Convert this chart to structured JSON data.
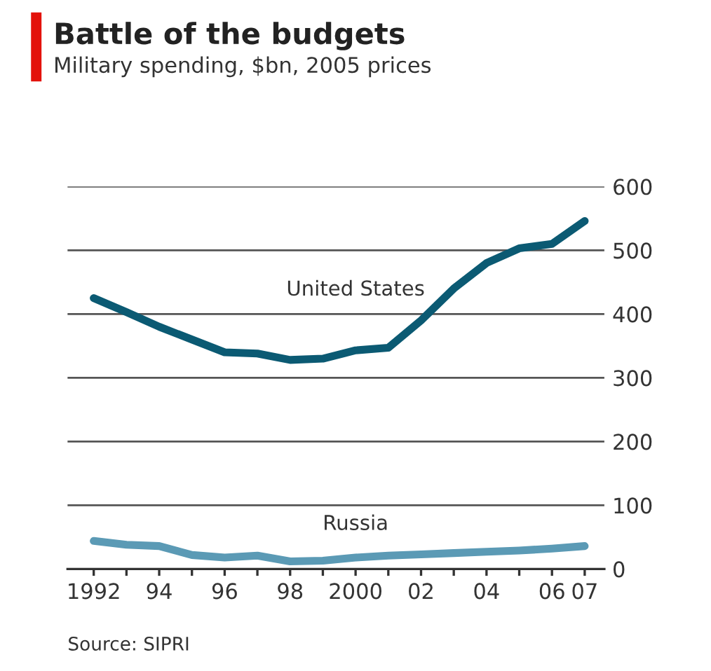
{
  "chart_data": {
    "type": "line",
    "title": "Battle of the budgets",
    "subtitle": "Military spending, $bn, 2005 prices",
    "x": [
      1992,
      1993,
      1994,
      1995,
      1996,
      1997,
      1998,
      1999,
      2000,
      2001,
      2002,
      2003,
      2004,
      2005,
      2006,
      2007
    ],
    "series": [
      {
        "name": "United States",
        "color": "#0b5a73",
        "values": [
          425,
          403,
          380,
          360,
          340,
          338,
          328,
          330,
          343,
          347,
          390,
          440,
          480,
          503,
          510,
          546
        ]
      },
      {
        "name": "Russia",
        "color": "#5b9ab5",
        "values": [
          44,
          38,
          36,
          22,
          18,
          21,
          12,
          13,
          18,
          21,
          23,
          25,
          27,
          29,
          32,
          36
        ]
      }
    ],
    "xlim": [
      1991.2,
      2007.6
    ],
    "xticks": [
      {
        "value": 1992,
        "label": "1992"
      },
      {
        "value": 1993,
        "label": null
      },
      {
        "value": 1994,
        "label": "94"
      },
      {
        "value": 1995,
        "label": null
      },
      {
        "value": 1996,
        "label": "96"
      },
      {
        "value": 1997,
        "label": null
      },
      {
        "value": 1998,
        "label": "98"
      },
      {
        "value": 1999,
        "label": null
      },
      {
        "value": 2000,
        "label": "2000"
      },
      {
        "value": 2001,
        "label": null
      },
      {
        "value": 2002,
        "label": "02"
      },
      {
        "value": 2003,
        "label": null
      },
      {
        "value": 2004,
        "label": "04"
      },
      {
        "value": 2005,
        "label": null
      },
      {
        "value": 2006,
        "label": "06"
      },
      {
        "value": 2007,
        "label": "07"
      }
    ],
    "ylim": [
      0,
      600
    ],
    "yticks": [
      0,
      100,
      200,
      300,
      400,
      500,
      600
    ],
    "grid": "y",
    "legend": false,
    "marker": "none",
    "line_style": "solid",
    "annotations": [
      "Source: SIPRI"
    ]
  }
}
